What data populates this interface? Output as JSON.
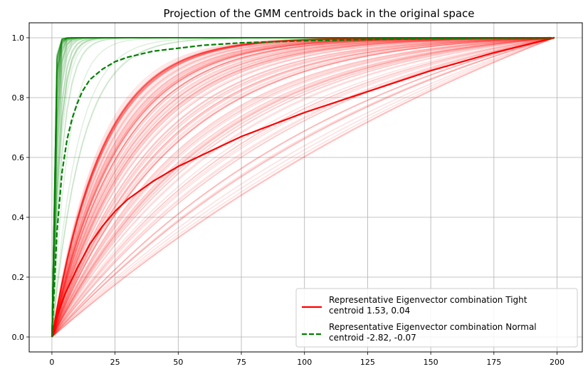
{
  "chart_data": {
    "type": "line",
    "title": "Projection of the GMM centroids back in the original space",
    "xlabel": "",
    "ylabel": "",
    "xlim": [
      -9,
      210
    ],
    "ylim": [
      -0.05,
      1.05
    ],
    "xticks": [
      0,
      25,
      50,
      75,
      100,
      125,
      150,
      175,
      200
    ],
    "yticks": [
      0.0,
      0.2,
      0.4,
      0.6,
      0.8,
      1.0
    ],
    "grid": true,
    "legend_position": "lower-right",
    "colors": {
      "tight": "#ff0000",
      "normal": "#008000"
    },
    "background_curves": {
      "tight_count": 140,
      "normal_count": 70,
      "alpha": 0.12,
      "x_max": 199
    },
    "series": [
      {
        "name": "Representative Eigenvector combination Tight\ncentroid 1.53, 0.04",
        "style": "solid",
        "color": "#ff0000",
        "x": [
          0,
          2,
          5,
          10,
          15,
          20,
          25,
          30,
          40,
          50,
          60,
          75,
          100,
          125,
          150,
          175,
          199
        ],
        "y": [
          0.0,
          0.07,
          0.14,
          0.23,
          0.31,
          0.37,
          0.42,
          0.46,
          0.52,
          0.57,
          0.61,
          0.67,
          0.75,
          0.82,
          0.89,
          0.95,
          1.0
        ]
      },
      {
        "name": "Representative Eigenvector combination Normal\ncentroid -2.82, -0.07",
        "style": "dashed",
        "color": "#008000",
        "x": [
          0,
          2,
          4,
          6,
          8,
          10,
          12,
          15,
          20,
          25,
          30,
          40,
          50,
          60,
          75,
          100,
          125,
          150,
          175,
          199
        ],
        "y": [
          0.0,
          0.35,
          0.55,
          0.66,
          0.73,
          0.78,
          0.82,
          0.86,
          0.895,
          0.92,
          0.935,
          0.955,
          0.965,
          0.975,
          0.983,
          0.99,
          0.994,
          0.997,
          0.999,
          1.0
        ]
      }
    ]
  }
}
